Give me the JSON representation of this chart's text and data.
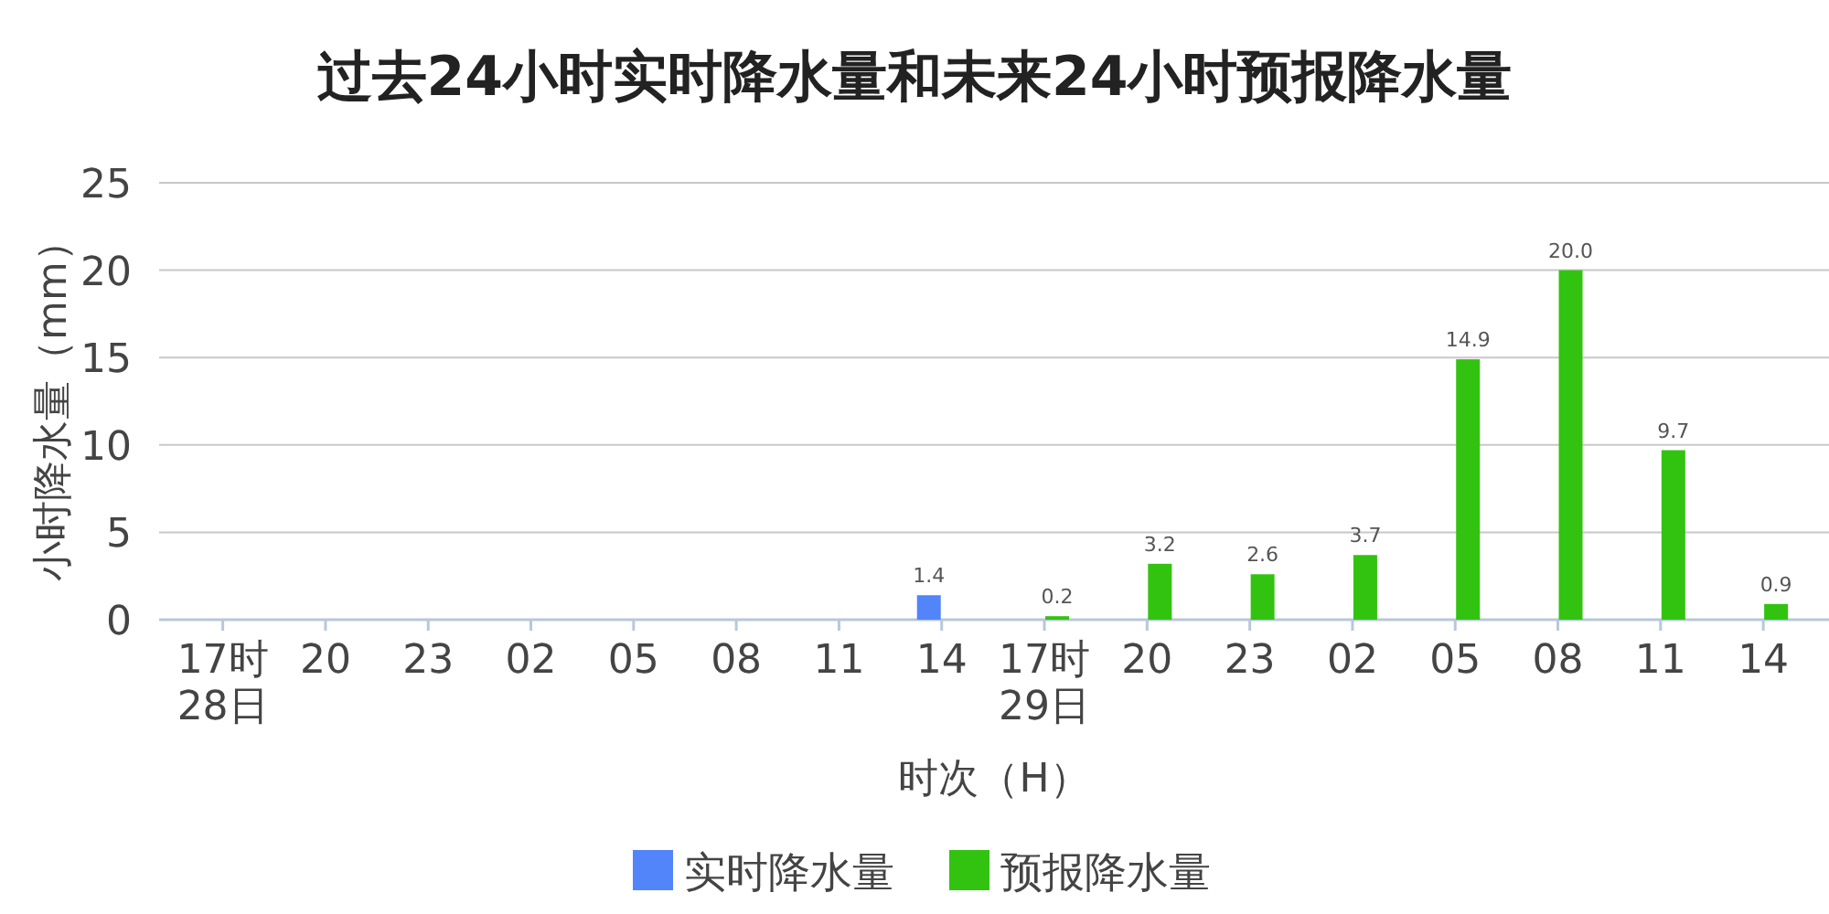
{
  "chart_data": {
    "type": "bar",
    "title": "过去24小时实时降水量和未来24小时预报降水量",
    "xlabel": "时次（H）",
    "ylabel": "小时降水量（mm）",
    "categories": [
      "17时\n28日",
      "20",
      "23",
      "02",
      "05",
      "08",
      "11",
      "14",
      "17时\n29日",
      "20",
      "23",
      "02",
      "05",
      "08",
      "11",
      "14"
    ],
    "series": [
      {
        "name": "实时降水量",
        "color": "#5284fa",
        "values": [
          null,
          null,
          null,
          null,
          null,
          null,
          null,
          1.4,
          null,
          null,
          null,
          null,
          null,
          null,
          null,
          null
        ],
        "value_labels": [
          null,
          null,
          null,
          null,
          null,
          null,
          null,
          "1.4",
          null,
          null,
          null,
          null,
          null,
          null,
          null,
          null
        ]
      },
      {
        "name": "预报降水量",
        "color": "#32c310",
        "values": [
          null,
          null,
          null,
          null,
          null,
          null,
          null,
          null,
          0.2,
          3.2,
          2.6,
          3.7,
          14.9,
          20.0,
          9.7,
          0.9
        ],
        "value_labels": [
          null,
          null,
          null,
          null,
          null,
          null,
          null,
          null,
          "0.2",
          "3.2",
          "2.6",
          "3.7",
          "14.9",
          "20.0",
          "9.7",
          "0.9"
        ]
      }
    ],
    "ylim": [
      0,
      25
    ],
    "yticks": [
      0,
      5,
      10,
      15,
      20,
      25
    ],
    "grid": "y",
    "legend": "bottom"
  }
}
